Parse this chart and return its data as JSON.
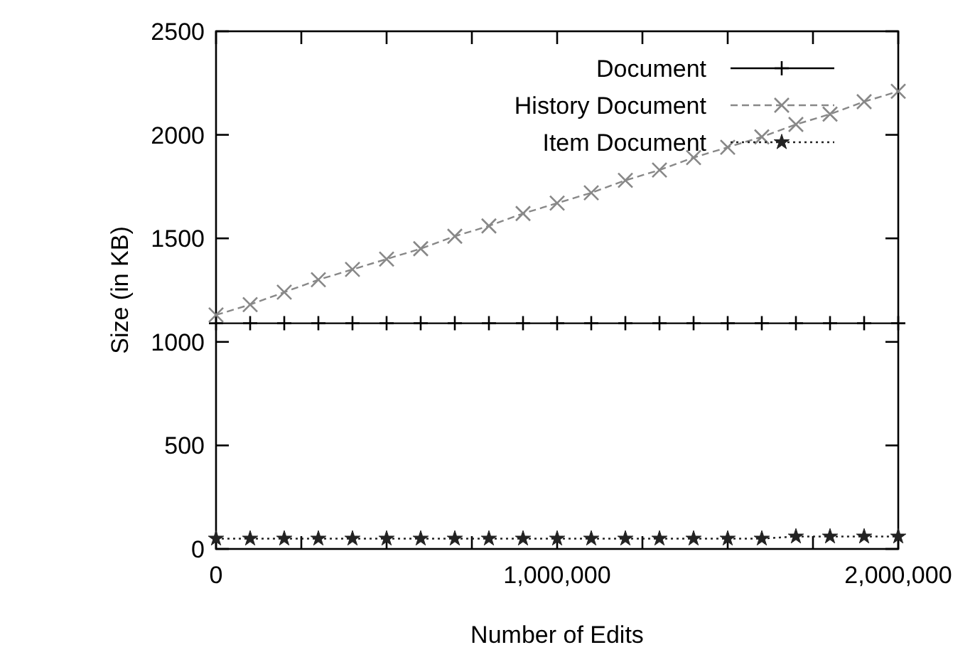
{
  "chart_data": {
    "type": "line",
    "xlabel": "Number of Edits",
    "ylabel": "Size (in KB)",
    "x": [
      0,
      100000,
      200000,
      300000,
      400000,
      500000,
      600000,
      700000,
      800000,
      900000,
      1000000,
      1100000,
      1200000,
      1300000,
      1400000,
      1500000,
      1600000,
      1700000,
      1800000,
      1900000,
      2000000
    ],
    "series": [
      {
        "name": "Document",
        "color": "#000000",
        "line_style": "solid",
        "marker": "plus",
        "values": [
          1090,
          1090,
          1090,
          1090,
          1090,
          1090,
          1090,
          1090,
          1090,
          1090,
          1090,
          1090,
          1090,
          1090,
          1090,
          1090,
          1090,
          1090,
          1090,
          1090,
          1090
        ]
      },
      {
        "name": "History Document",
        "color": "#888888",
        "line_style": "dashed",
        "marker": "cross",
        "values": [
          1130,
          1180,
          1240,
          1300,
          1350,
          1400,
          1450,
          1510,
          1560,
          1620,
          1670,
          1720,
          1780,
          1830,
          1890,
          1940,
          1990,
          2050,
          2100,
          2160,
          2210
        ]
      },
      {
        "name": "Item Document",
        "color": "#222222",
        "line_style": "dotted",
        "marker": "star",
        "values": [
          50,
          50,
          50,
          50,
          50,
          50,
          50,
          50,
          50,
          50,
          50,
          50,
          50,
          50,
          50,
          50,
          50,
          60,
          60,
          60,
          60
        ]
      }
    ],
    "xlim": [
      0,
      2000000
    ],
    "ylim": [
      0,
      2500
    ],
    "xticks": [
      0,
      {
        "value": 250000,
        "label": null
      },
      {
        "value": 500000,
        "label": null
      },
      {
        "value": 750000,
        "label": null
      },
      {
        "value": 1000000,
        "label": "1,000,000"
      },
      {
        "value": 1250000,
        "label": null
      },
      {
        "value": 1500000,
        "label": null
      },
      {
        "value": 1750000,
        "label": null
      },
      {
        "value": 2000000,
        "label": "2,000,000"
      }
    ],
    "yticks": [
      0,
      500,
      1000,
      1500,
      2000,
      2500
    ],
    "grid": false,
    "legend": "top"
  }
}
